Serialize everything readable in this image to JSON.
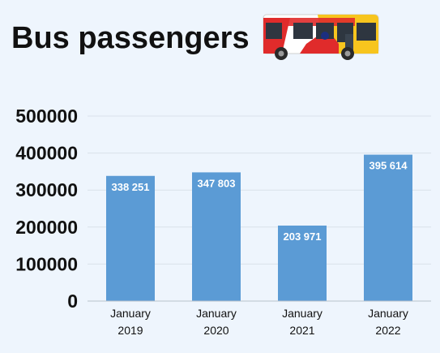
{
  "title": "Bus passengers",
  "illustration": {
    "icon": "bus-icon",
    "colors": {
      "red": "#e02b2b",
      "yellow": "#f7c51e",
      "body": "#ffffff",
      "window": "#2e3640"
    }
  },
  "chart_data": {
    "type": "bar",
    "title": "Bus passengers",
    "categories": [
      [
        "January",
        "2019"
      ],
      [
        "January",
        "2020"
      ],
      [
        "January",
        "2021"
      ],
      [
        "January",
        "2022"
      ]
    ],
    "values": [
      338251,
      347803,
      203971,
      395614
    ],
    "data_labels": [
      "338 251",
      "347 803",
      "203 971",
      "395 614"
    ],
    "xlabel": "",
    "ylabel": "",
    "ylim": [
      0,
      500000
    ],
    "yticks": [
      "0",
      "100000",
      "200000",
      "300000",
      "400000",
      "500000"
    ],
    "ytick_values": [
      0,
      100000,
      200000,
      300000,
      400000,
      500000
    ],
    "grid": true,
    "bar_color": "#5b9bd5",
    "grid_color": "#d9e1ea",
    "legend": "none"
  }
}
